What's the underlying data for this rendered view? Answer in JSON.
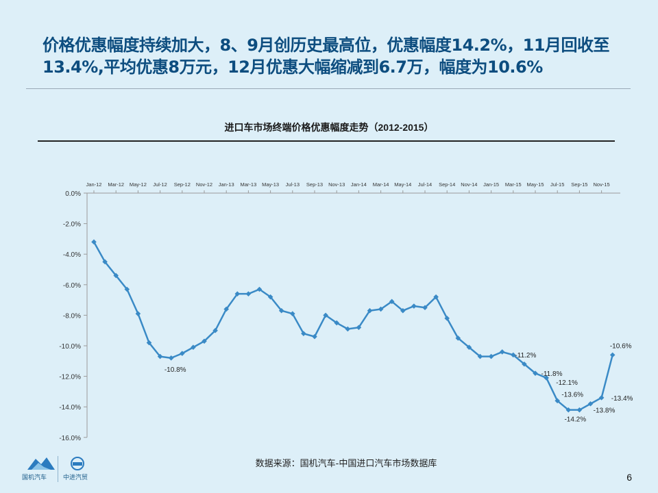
{
  "headline": {
    "line1": "价格优惠幅度持续加大，8、9月创历史最高位，优惠幅度14.2%，11月回收至",
    "line2": "13.4%,平均优惠8万元，12月优惠大幅缩减到6.7万，幅度为10.6%"
  },
  "source": "数据来源：国机汽车-中国进口汽车市场数据库",
  "page_number": "6",
  "logos": {
    "left_label": "国机汽车",
    "right_label": "中进汽贸"
  },
  "colors": {
    "background": "#ddeff8",
    "headline": "#0d4d7f",
    "series": "#3a8ac6"
  },
  "chart_data": {
    "type": "line",
    "title": "进口车市场终端价格优惠幅度走势（2012-2015）",
    "x": [
      "Jan-12",
      "Feb-12",
      "Mar-12",
      "Apr-12",
      "May-12",
      "Jun-12",
      "Jul-12",
      "Aug-12",
      "Sep-12",
      "Oct-12",
      "Nov-12",
      "Dec-12",
      "Jan-13",
      "Feb-13",
      "Mar-13",
      "Apr-13",
      "May-13",
      "Jun-13",
      "Jul-13",
      "Aug-13",
      "Sep-13",
      "Oct-13",
      "Nov-13",
      "Dec-13",
      "Jan-14",
      "Feb-14",
      "Mar-14",
      "Apr-14",
      "May-14",
      "Jun-14",
      "Jul-14",
      "Aug-14",
      "Sep-14",
      "Oct-14",
      "Nov-14",
      "Dec-14",
      "Jan-15",
      "Feb-15",
      "Mar-15",
      "Apr-15",
      "May-15",
      "Jun-15",
      "Jul-15",
      "Aug-15",
      "Sep-15",
      "Oct-15",
      "Nov-15",
      "Dec-15"
    ],
    "tick_labels": [
      "Jan-12",
      "Mar-12",
      "May-12",
      "Jul-12",
      "Sep-12",
      "Nov-12",
      "Jan-13",
      "Mar-13",
      "May-13",
      "Jul-13",
      "Sep-13",
      "Nov-13",
      "Jan-14",
      "Mar-14",
      "May-14",
      "Jul-14",
      "Sep-14",
      "Nov-14",
      "Jan-15",
      "Mar-15",
      "May-15",
      "Jul-15",
      "Sep-15",
      "Nov-15"
    ],
    "values": [
      -3.2,
      -4.5,
      -5.4,
      -6.3,
      -7.9,
      -9.8,
      -10.7,
      -10.8,
      -10.5,
      -10.1,
      -9.7,
      -9.0,
      -7.6,
      -6.6,
      -6.6,
      -6.3,
      -6.8,
      -7.7,
      -7.9,
      -9.2,
      -9.4,
      -8.0,
      -8.5,
      -8.9,
      -8.8,
      -7.7,
      -7.6,
      -7.1,
      -7.7,
      -7.4,
      -7.5,
      -6.8,
      -8.2,
      -9.5,
      -10.1,
      -10.7,
      -10.7,
      -10.4,
      -10.6,
      -11.2,
      -11.8,
      -12.1,
      -13.6,
      -14.2,
      -14.2,
      -13.8,
      -13.4,
      -10.6
    ],
    "data_labels": [
      {
        "index": 7,
        "text": "-10.8%"
      },
      {
        "index": 39,
        "text": "-11.2%"
      },
      {
        "index": 40,
        "text": "-11.8%"
      },
      {
        "index": 41,
        "text": "-12.1%"
      },
      {
        "index": 42,
        "text": "-13.6%"
      },
      {
        "index": 43,
        "text": "-14.2%"
      },
      {
        "index": 45,
        "text": "-13.8%"
      },
      {
        "index": 46,
        "text": "-13.4%"
      },
      {
        "index": 47,
        "text": "-10.6%"
      }
    ],
    "yticks": [
      "0.0%",
      "-2.0%",
      "-4.0%",
      "-6.0%",
      "-8.0%",
      "-10.0%",
      "-12.0%",
      "-14.0%",
      "-16.0%"
    ],
    "ylim": [
      -16,
      0
    ],
    "x_axis_position": "top",
    "grid": false,
    "legend": "none"
  }
}
